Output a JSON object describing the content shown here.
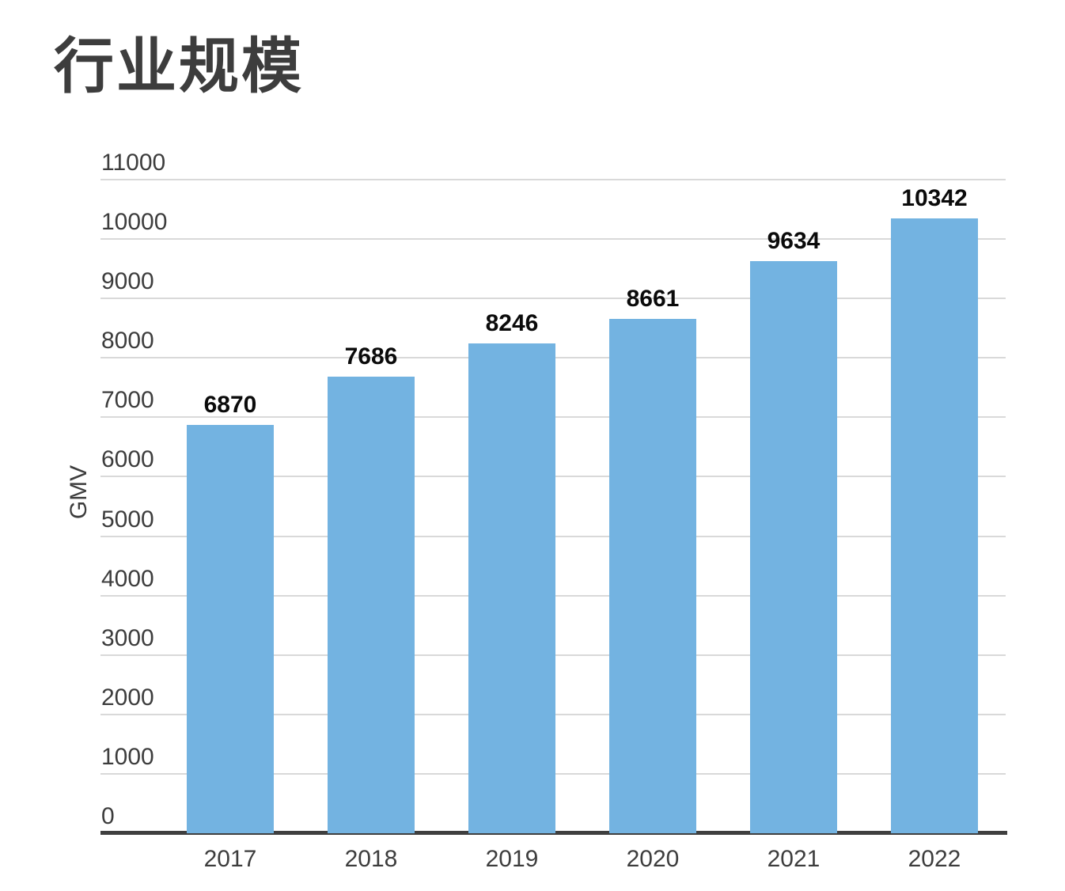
{
  "page": {
    "background_color": "#ffffff"
  },
  "chart_data": {
    "type": "bar",
    "title": "行业规模",
    "xlabel": "",
    "ylabel": "GMV",
    "categories": [
      "2017",
      "2018",
      "2019",
      "2020",
      "2021",
      "2022"
    ],
    "values": [
      6870,
      7686,
      8246,
      8661,
      9634,
      10342
    ],
    "ylim": [
      0,
      11000
    ],
    "yticks": [
      0,
      1000,
      2000,
      3000,
      4000,
      5000,
      6000,
      7000,
      8000,
      9000,
      10000,
      11000
    ],
    "grid": true,
    "legend": "none",
    "value_labels": true,
    "colors": {
      "bar": "#73b3e1",
      "gridline": "#d9d9d9",
      "axis_line": "#3f3f3f",
      "tick_text": "#3d3d3d",
      "value_text": "#0b0b0b",
      "title_text": "#3d3d3d"
    }
  }
}
